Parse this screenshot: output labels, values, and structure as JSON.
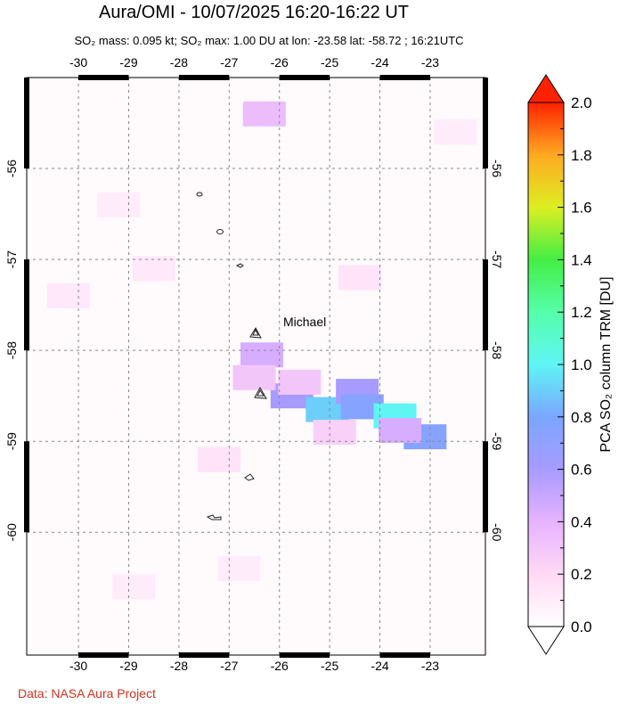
{
  "chart_data": {
    "type": "map",
    "title": "Aura/OMI - 10/07/2025 16:20-16:22 UT",
    "subtitle": "SO₂ mass: 0.095 kt; SO₂ max: 1.00 DU at lon: -23.58 lat: -58.72 ; 16:21UTC",
    "xlim": [
      -31.03,
      -21.9
    ],
    "ylim": [
      -61.35,
      -55.0
    ],
    "xticks": [
      -30,
      -29,
      -28,
      -27,
      -26,
      -25,
      -24,
      -23
    ],
    "yticks": [
      -56,
      -57,
      -58,
      -59,
      -60
    ],
    "grid": true,
    "volcano": "Michael",
    "colorbar": {
      "label": "PCA SO₂ column TRM [DU]",
      "lim": [
        0,
        2
      ],
      "ticks": [
        {
          "value": 0,
          "label": "0.0"
        },
        {
          "value": 0.2,
          "label": "0.2"
        },
        {
          "value": 0.4,
          "label": "0.4"
        },
        {
          "value": 0.6,
          "label": "0.6"
        },
        {
          "value": 0.8,
          "label": "0.8"
        },
        {
          "value": 1,
          "label": "1.0"
        },
        {
          "value": 1.2,
          "label": "1.2"
        },
        {
          "value": 1.4,
          "label": "1.4"
        },
        {
          "value": 1.6,
          "label": "1.6"
        },
        {
          "value": 1.8,
          "label": "1.8"
        },
        {
          "value": 2,
          "label": "2.0"
        }
      ]
    },
    "pixels": {
      "lon": [
        -26.35,
        -25.75,
        -25.05,
        -24.45,
        -24.35,
        -23.7,
        -23.1,
        -23.6,
        -25.6,
        -26.5,
        -26.3,
        -29.2,
        -28.5,
        -24.4,
        -22.5,
        -30.2,
        -27.2,
        -24.9,
        -26.8,
        -28.9
      ],
      "lat": [
        -58.05,
        -58.5,
        -58.65,
        -58.45,
        -58.62,
        -58.72,
        -58.95,
        -58.88,
        -58.35,
        -58.3,
        -55.4,
        -56.4,
        -57.1,
        -57.2,
        -55.6,
        -57.4,
        -59.2,
        -58.9,
        -60.4,
        -60.6
      ],
      "values": [
        0.45,
        0.6,
        0.9,
        0.6,
        0.75,
        1.0,
        0.75,
        0.45,
        0.3,
        0.3,
        0.35,
        0.1,
        0.12,
        0.15,
        0.1,
        0.12,
        0.15,
        0.25,
        0.1,
        0.1
      ]
    },
    "credit": "Data: NASA Aura Project"
  }
}
